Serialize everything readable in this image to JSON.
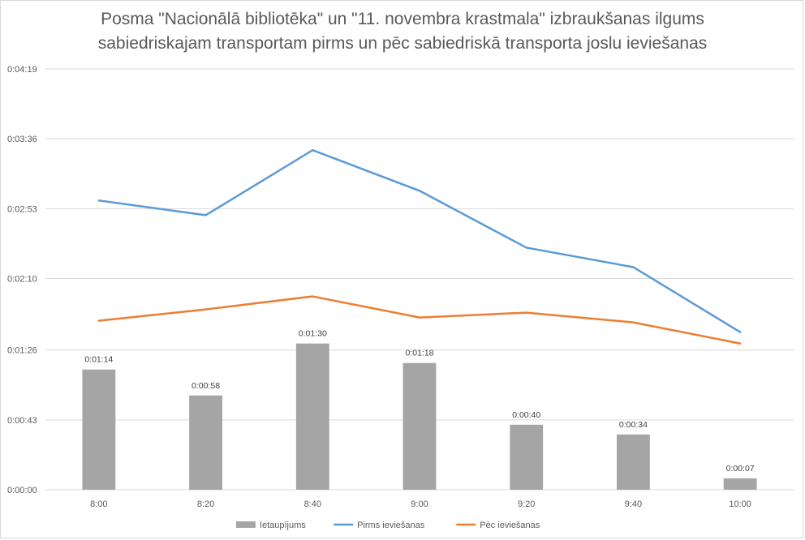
{
  "chart_data": {
    "type": "bar",
    "title_line1": "Posma \"Nacionālā bibliotēka\" un \"11. novembra krastmala\" izbraukšanas ilgums",
    "title_line2": "sabiedriskajam transportam pirms un pēc sabiedriskā transporta joslu ieviešanas",
    "categories": [
      "8:00",
      "8:20",
      "8:40",
      "9:00",
      "9:20",
      "9:40",
      "10:00"
    ],
    "y_ticks": [
      "0:00:00",
      "0:00:43",
      "0:01:26",
      "0:02:10",
      "0:02:53",
      "0:03:36",
      "0:04:19"
    ],
    "y_tick_seconds": [
      0,
      43,
      86,
      130,
      173,
      216,
      259
    ],
    "ylim": [
      0,
      259
    ],
    "grid": true,
    "legend_position": "bottom",
    "series": [
      {
        "name": "Ietaupījums",
        "kind": "bar",
        "color": "#a5a5a5",
        "values": [
          74,
          58,
          90,
          78,
          40,
          34,
          7
        ],
        "labels": [
          "0:01:14",
          "0:00:58",
          "0:01:30",
          "0:01:18",
          "0:00:40",
          "0:00:34",
          "0:00:07"
        ]
      },
      {
        "name": "Pirms ieviešanas",
        "kind": "line",
        "color": "#5b9bd5",
        "values": [
          178,
          169,
          209,
          184,
          149,
          137,
          97
        ]
      },
      {
        "name": "Pēc ieviešanas",
        "kind": "line",
        "color": "#ed7d31",
        "values": [
          104,
          111,
          119,
          106,
          109,
          103,
          90
        ]
      }
    ]
  }
}
